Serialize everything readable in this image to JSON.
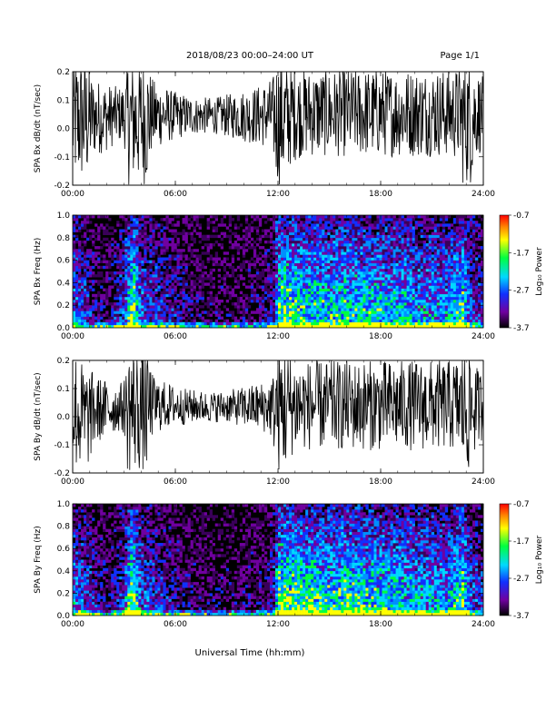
{
  "header": {
    "title": "2018/08/23  00:00–24:00 UT",
    "page": "Page 1/1"
  },
  "chart_data": [
    {
      "type": "line",
      "title": "",
      "xlabel": "",
      "ylabel": "SPA Bx dB/dt (nT/sec)",
      "xlim": [
        0,
        24
      ],
      "ylim": [
        -0.2,
        0.2
      ],
      "xtick_labels": [
        "00:00",
        "06:00",
        "12:00",
        "18:00",
        "24:00"
      ],
      "ytick_labels": [
        "-0.2",
        "-0.1",
        "0.0",
        "0.1",
        "0.2"
      ],
      "envelope": {
        "x_hours": [
          0.0,
          0.4,
          0.8,
          1.2,
          1.6,
          2.0,
          2.4,
          2.8,
          3.1,
          3.2,
          3.6,
          4.0,
          4.4,
          4.6,
          4.8,
          5.2,
          5.6,
          6.0,
          6.6,
          7.2,
          7.8,
          8.4,
          9.0,
          9.6,
          10.2,
          10.8,
          11.4,
          11.7,
          11.9,
          12.0,
          12.4,
          12.8,
          13.4,
          14.0,
          15.0,
          16.0,
          17.0,
          18.0,
          19.0,
          20.0,
          21.0,
          22.0,
          22.6,
          22.8,
          23.1,
          23.3,
          23.6,
          24.0
        ],
        "upper": [
          0.2,
          0.2,
          0.2,
          0.12,
          0.11,
          0.1,
          0.09,
          0.09,
          0.11,
          0.2,
          0.2,
          0.2,
          0.2,
          0.12,
          0.11,
          0.1,
          0.08,
          0.07,
          0.06,
          0.05,
          0.05,
          0.05,
          0.06,
          0.07,
          0.08,
          0.09,
          0.11,
          0.12,
          0.2,
          0.2,
          0.2,
          0.17,
          0.15,
          0.15,
          0.15,
          0.15,
          0.15,
          0.15,
          0.15,
          0.15,
          0.15,
          0.15,
          0.16,
          0.2,
          0.2,
          0.2,
          0.15,
          0.12
        ],
        "lower": [
          -0.2,
          -0.2,
          -0.2,
          -0.1,
          -0.09,
          -0.08,
          -0.06,
          -0.05,
          -0.08,
          -0.2,
          -0.2,
          -0.2,
          -0.2,
          -0.09,
          -0.08,
          -0.06,
          -0.05,
          -0.04,
          -0.03,
          -0.02,
          -0.02,
          -0.02,
          -0.03,
          -0.04,
          -0.05,
          -0.06,
          -0.07,
          -0.09,
          -0.2,
          -0.2,
          -0.2,
          -0.12,
          -0.1,
          -0.1,
          -0.1,
          -0.1,
          -0.1,
          -0.1,
          -0.1,
          -0.1,
          -0.1,
          -0.1,
          -0.12,
          -0.2,
          -0.2,
          -0.2,
          -0.1,
          -0.08
        ]
      }
    },
    {
      "type": "heatmap",
      "title": "",
      "xlabel": "",
      "ylabel": "SPA Bx Freq (Hz)",
      "xlim": [
        0,
        24
      ],
      "ylim": [
        0.0,
        1.0
      ],
      "xtick_labels": [
        "00:00",
        "06:00",
        "12:00",
        "18:00",
        "24:00"
      ],
      "ytick_labels": [
        "0.0",
        "0.2",
        "0.4",
        "0.6",
        "0.8",
        "1.0"
      ],
      "colorbar": {
        "label": "Log₁₀ Power",
        "range": [
          -3.7,
          -0.7
        ],
        "tick_labels": [
          "-0.7",
          "-1.7",
          "-2.7",
          "-3.7"
        ],
        "colors": [
          "#000000",
          "#7000a0",
          "#1030ff",
          "#00d8ff",
          "#00ff40",
          "#ffff00",
          "#ff8000",
          "#ff0000"
        ]
      },
      "activity": {
        "x_hours": [
          0.0,
          1.0,
          2.0,
          3.0,
          3.5,
          4.0,
          5.0,
          6.0,
          7.0,
          8.0,
          9.0,
          10.0,
          11.0,
          11.8,
          12.0,
          13.0,
          14.0,
          15.0,
          16.0,
          17.0,
          18.0,
          19.0,
          20.0,
          21.0,
          22.0,
          22.8,
          23.2,
          24.0
        ],
        "level": [
          0.55,
          0.35,
          0.2,
          0.45,
          0.95,
          0.5,
          0.4,
          0.3,
          0.22,
          0.2,
          0.2,
          0.2,
          0.25,
          0.4,
          0.85,
          0.8,
          0.75,
          0.72,
          0.75,
          0.72,
          0.7,
          0.68,
          0.62,
          0.6,
          0.6,
          0.85,
          0.5,
          0.4
        ]
      }
    },
    {
      "type": "line",
      "title": "",
      "xlabel": "",
      "ylabel": "SPA By dB/dt (nT/sec)",
      "xlim": [
        0,
        24
      ],
      "ylim": [
        -0.2,
        0.2
      ],
      "xtick_labels": [
        "00:00",
        "06:00",
        "12:00",
        "18:00",
        "24:00"
      ],
      "ytick_labels": [
        "-0.2",
        "-0.1",
        "0.0",
        "0.1",
        "0.2"
      ],
      "envelope": {
        "x_hours": [
          0.0,
          0.4,
          0.8,
          1.2,
          1.6,
          2.0,
          2.4,
          2.8,
          3.1,
          3.2,
          3.6,
          4.0,
          4.4,
          4.6,
          4.8,
          5.2,
          5.6,
          6.0,
          6.6,
          7.2,
          7.8,
          8.4,
          9.0,
          9.6,
          10.2,
          10.8,
          11.4,
          11.7,
          11.9,
          12.0,
          12.4,
          12.8,
          13.4,
          14.0,
          15.0,
          16.0,
          17.0,
          18.0,
          19.0,
          20.0,
          21.0,
          22.0,
          22.6,
          22.8,
          23.1,
          23.3,
          23.6,
          24.0
        ],
        "upper": [
          0.2,
          0.15,
          0.12,
          0.1,
          0.08,
          0.07,
          0.06,
          0.06,
          0.09,
          0.2,
          0.2,
          0.2,
          0.2,
          0.1,
          0.08,
          0.07,
          0.06,
          0.05,
          0.04,
          0.035,
          0.03,
          0.03,
          0.035,
          0.04,
          0.05,
          0.06,
          0.07,
          0.09,
          0.2,
          0.2,
          0.2,
          0.16,
          0.14,
          0.14,
          0.14,
          0.14,
          0.14,
          0.14,
          0.14,
          0.14,
          0.14,
          0.14,
          0.15,
          0.2,
          0.2,
          0.2,
          0.12,
          0.1
        ],
        "lower": [
          -0.2,
          -0.2,
          -0.2,
          -0.12,
          -0.09,
          -0.07,
          -0.06,
          -0.05,
          -0.08,
          -0.2,
          -0.2,
          -0.2,
          -0.2,
          -0.08,
          -0.06,
          -0.05,
          -0.04,
          -0.03,
          -0.03,
          -0.02,
          -0.02,
          -0.02,
          -0.02,
          -0.03,
          -0.04,
          -0.05,
          -0.06,
          -0.09,
          -0.2,
          -0.2,
          -0.2,
          -0.14,
          -0.12,
          -0.12,
          -0.12,
          -0.12,
          -0.12,
          -0.12,
          -0.12,
          -0.12,
          -0.12,
          -0.12,
          -0.13,
          -0.2,
          -0.2,
          -0.2,
          -0.1,
          -0.08
        ]
      }
    },
    {
      "type": "heatmap",
      "title": "",
      "xlabel": "Universal Time (hh:mm)",
      "ylabel": "SPA By Freq (Hz)",
      "xlim": [
        0,
        24
      ],
      "ylim": [
        0.0,
        1.0
      ],
      "xtick_labels": [
        "00:00",
        "06:00",
        "12:00",
        "18:00",
        "24:00"
      ],
      "ytick_labels": [
        "0.0",
        "0.2",
        "0.4",
        "0.6",
        "0.8",
        "1.0"
      ],
      "colorbar": {
        "label": "Log₁₀ Power",
        "range": [
          -3.7,
          -0.7
        ],
        "tick_labels": [
          "-0.7",
          "-1.7",
          "-2.7",
          "-3.7"
        ],
        "colors": [
          "#000000",
          "#7000a0",
          "#1030ff",
          "#00d8ff",
          "#00ff40",
          "#ffff00",
          "#ff8000",
          "#ff0000"
        ]
      },
      "activity": {
        "x_hours": [
          0.0,
          1.0,
          2.0,
          3.0,
          3.5,
          4.0,
          5.0,
          6.0,
          7.0,
          8.0,
          9.0,
          10.0,
          11.0,
          11.8,
          12.0,
          13.0,
          14.0,
          15.0,
          16.0,
          17.0,
          18.0,
          19.0,
          20.0,
          21.0,
          22.0,
          22.8,
          23.2,
          24.0
        ],
        "level": [
          0.6,
          0.38,
          0.22,
          0.45,
          0.95,
          0.5,
          0.4,
          0.3,
          0.22,
          0.2,
          0.2,
          0.2,
          0.25,
          0.4,
          0.85,
          0.85,
          0.8,
          0.75,
          0.8,
          0.75,
          0.72,
          0.7,
          0.65,
          0.62,
          0.62,
          0.85,
          0.5,
          0.4
        ]
      }
    }
  ]
}
